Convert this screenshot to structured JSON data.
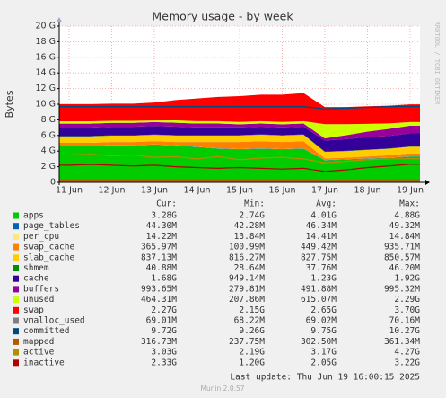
{
  "chart_data": {
    "type": "area",
    "title": "Memory usage - by week",
    "y_label": "Bytes",
    "side_text": "RRDTOOL / TOBI OETIKER",
    "last_update": "Last update: Thu Jun 19 16:00:15 2025",
    "footer": "Munin 2.0.57",
    "stats_headers": [
      "Cur:",
      "Min:",
      "Avg:",
      "Max:"
    ],
    "ylim": [
      0,
      20
    ],
    "yticks": [
      0,
      {
        "value": 2,
        "label": "2 G"
      },
      {
        "value": 4,
        "label": "4 G"
      },
      {
        "value": 6,
        "label": "6 G"
      },
      {
        "value": 8,
        "label": "8 G"
      },
      {
        "value": 10,
        "label": "10 G"
      },
      {
        "value": 12,
        "label": "12 G"
      },
      {
        "value": 14,
        "label": "14 G"
      },
      {
        "value": 16,
        "label": "16 G"
      },
      {
        "value": 18,
        "label": "18 G"
      },
      {
        "value": 20,
        "label": "20 G"
      }
    ],
    "grid": true,
    "categories": [
      "11 Jun",
      null,
      "12 Jun",
      null,
      "13 Jun",
      null,
      "14 Jun",
      null,
      "15 Jun",
      null,
      "16 Jun",
      null,
      "17 Jun",
      null,
      "18 Jun",
      null,
      "19 Jun"
    ],
    "series": [
      {
        "name": "apps",
        "color": "#00cc00",
        "style": "area",
        "values": [
          4.6,
          4.6,
          4.7,
          4.7,
          4.8,
          4.7,
          4.5,
          4.3,
          4.2,
          4.3,
          4.2,
          4.3,
          2.8,
          2.9,
          3.0,
          3.1,
          3.28
        ],
        "stats": [
          "3.28G",
          "2.74G",
          "4.01G",
          "4.88G"
        ]
      },
      {
        "name": "page_tables",
        "color": "#0066b3",
        "style": "area",
        "values": [
          0.044,
          0.044,
          0.044,
          0.044,
          0.044,
          0.044,
          0.044,
          0.044,
          0.044,
          0.044,
          0.044,
          0.044,
          0.044,
          0.044,
          0.044,
          0.044,
          0.044
        ],
        "stats": [
          "44.30M",
          "42.28M",
          "46.34M",
          "49.32M"
        ]
      },
      {
        "name": "per_cpu",
        "color": "#ffe680",
        "style": "area",
        "values": [
          0.014,
          0.014,
          0.014,
          0.014,
          0.014,
          0.014,
          0.014,
          0.014,
          0.014,
          0.014,
          0.014,
          0.014,
          0.014,
          0.014,
          0.014,
          0.014,
          0.014
        ],
        "stats": [
          "14.22M",
          "13.84M",
          "14.41M",
          "14.84M"
        ]
      },
      {
        "name": "swap_cache",
        "color": "#ff8000",
        "style": "area",
        "values": [
          0.4,
          0.4,
          0.4,
          0.4,
          0.4,
          0.4,
          0.6,
          0.8,
          0.9,
          0.9,
          0.9,
          0.9,
          0.2,
          0.2,
          0.25,
          0.3,
          0.37
        ],
        "stats": [
          "365.97M",
          "100.99M",
          "449.42M",
          "935.71M"
        ]
      },
      {
        "name": "slab_cache",
        "color": "#ffcc00",
        "style": "area",
        "values": [
          0.82,
          0.82,
          0.82,
          0.82,
          0.82,
          0.83,
          0.83,
          0.83,
          0.83,
          0.83,
          0.83,
          0.83,
          0.84,
          0.84,
          0.84,
          0.84,
          0.84
        ],
        "stats": [
          "837.13M",
          "816.27M",
          "827.75M",
          "850.57M"
        ]
      },
      {
        "name": "shmem",
        "color": "#008f00",
        "style": "area",
        "values": [
          0.04,
          0.04,
          0.04,
          0.04,
          0.04,
          0.04,
          0.04,
          0.04,
          0.04,
          0.04,
          0.04,
          0.04,
          0.04,
          0.04,
          0.04,
          0.04,
          0.04
        ],
        "stats": [
          "40.88M",
          "28.64M",
          "37.76M",
          "46.20M"
        ]
      },
      {
        "name": "cache",
        "color": "#330099",
        "style": "area",
        "values": [
          1.1,
          1.1,
          1.1,
          1.1,
          1.1,
          1.1,
          1.0,
          1.0,
          1.0,
          1.0,
          1.0,
          1.0,
          1.4,
          1.5,
          1.6,
          1.6,
          1.68
        ],
        "stats": [
          "1.68G",
          "949.14M",
          "1.23G",
          "1.92G"
        ]
      },
      {
        "name": "buffers",
        "color": "#990099",
        "style": "area",
        "values": [
          0.5,
          0.5,
          0.5,
          0.5,
          0.5,
          0.5,
          0.5,
          0.5,
          0.4,
          0.4,
          0.4,
          0.4,
          0.3,
          0.5,
          0.7,
          0.9,
          0.99
        ],
        "stats": [
          "993.65M",
          "279.81M",
          "491.88M",
          "995.32M"
        ]
      },
      {
        "name": "unused",
        "color": "#ccff00",
        "style": "area",
        "values": [
          0.3,
          0.3,
          0.25,
          0.25,
          0.2,
          0.3,
          0.3,
          0.3,
          0.3,
          0.3,
          0.3,
          0.3,
          1.8,
          1.4,
          1.0,
          0.7,
          0.46
        ],
        "stats": [
          "464.31M",
          "207.86M",
          "615.07M",
          "2.29G"
        ]
      },
      {
        "name": "swap",
        "color": "#ff0000",
        "style": "area",
        "values": [
          2.2,
          2.2,
          2.2,
          2.2,
          2.3,
          2.6,
          2.9,
          3.1,
          3.3,
          3.4,
          3.5,
          3.6,
          2.2,
          2.2,
          2.25,
          2.27,
          2.27
        ],
        "stats": [
          "2.27G",
          "2.15G",
          "2.65G",
          "3.70G"
        ]
      },
      {
        "name": "vmalloc_used",
        "color": "#808080",
        "style": "line",
        "values": [
          0.069,
          0.069,
          0.069,
          0.069,
          0.069,
          0.069,
          0.069,
          0.069,
          0.069,
          0.069,
          0.069,
          0.069,
          0.069,
          0.069,
          0.069,
          0.069,
          0.069
        ],
        "stats": [
          "69.01M",
          "68.22M",
          "69.02M",
          "70.16M"
        ]
      },
      {
        "name": "committed",
        "color": "#00487d",
        "style": "line",
        "values": [
          9.7,
          9.7,
          9.7,
          9.7,
          9.7,
          9.7,
          9.7,
          9.7,
          9.7,
          9.7,
          9.7,
          9.7,
          9.4,
          9.5,
          9.6,
          9.7,
          9.72
        ],
        "stats": [
          "9.72G",
          "9.26G",
          "9.75G",
          "10.27G"
        ]
      },
      {
        "name": "mapped",
        "color": "#b35a00",
        "style": "line",
        "values": [
          0.3,
          0.3,
          0.3,
          0.3,
          0.3,
          0.3,
          0.3,
          0.3,
          0.3,
          0.3,
          0.3,
          0.3,
          0.25,
          0.28,
          0.3,
          0.31,
          0.32
        ],
        "stats": [
          "316.73M",
          "237.75M",
          "302.50M",
          "361.34M"
        ]
      },
      {
        "name": "active",
        "color": "#b38f00",
        "style": "line",
        "values": [
          3.5,
          3.6,
          3.4,
          3.5,
          3.2,
          3.3,
          3.0,
          3.3,
          2.9,
          3.1,
          3.2,
          3.0,
          2.5,
          2.7,
          2.9,
          3.0,
          3.03
        ],
        "stats": [
          "3.03G",
          "2.19G",
          "3.17G",
          "4.27G"
        ]
      },
      {
        "name": "inactive",
        "color": "#b30000",
        "style": "line",
        "values": [
          2.2,
          2.3,
          2.2,
          2.1,
          2.2,
          2.0,
          1.9,
          1.8,
          1.9,
          1.8,
          1.7,
          1.8,
          1.4,
          1.6,
          1.9,
          2.1,
          2.33
        ],
        "stats": [
          "2.33G",
          "1.20G",
          "2.05G",
          "3.22G"
        ]
      }
    ]
  }
}
